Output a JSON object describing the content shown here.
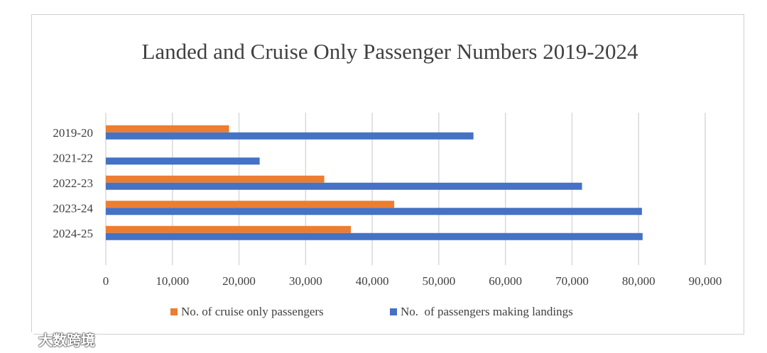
{
  "chart_data": {
    "type": "bar",
    "orientation": "horizontal",
    "title": "Landed and Cruise Only Passenger Numbers 2019-2024",
    "categories": [
      "2019-20",
      "2021-22",
      "2022-23",
      "2023-24",
      "2024-25"
    ],
    "series": [
      {
        "name": "No. of cruise only passengers",
        "color": "#ED7D31",
        "values": [
          18500,
          null,
          32800,
          43300,
          36800
        ]
      },
      {
        "name": "No.  of passengers making landings",
        "color": "#4472C4",
        "values": [
          55200,
          23100,
          71500,
          80500,
          80600
        ]
      }
    ],
    "xlim": [
      0,
      90000
    ],
    "x_ticks": [
      0,
      10000,
      20000,
      30000,
      40000,
      50000,
      60000,
      70000,
      80000,
      90000
    ],
    "x_tick_labels": [
      "0",
      "10,000",
      "20,000",
      "30,000",
      "40,000",
      "50,000",
      "60,000",
      "70,000",
      "80,000",
      "90,000"
    ],
    "xlabel": "",
    "ylabel": "",
    "grid": "vertical",
    "legend_position": "bottom"
  },
  "watermark": {
    "text": "大数跨境",
    "icon": "watermark-logo-icon"
  }
}
